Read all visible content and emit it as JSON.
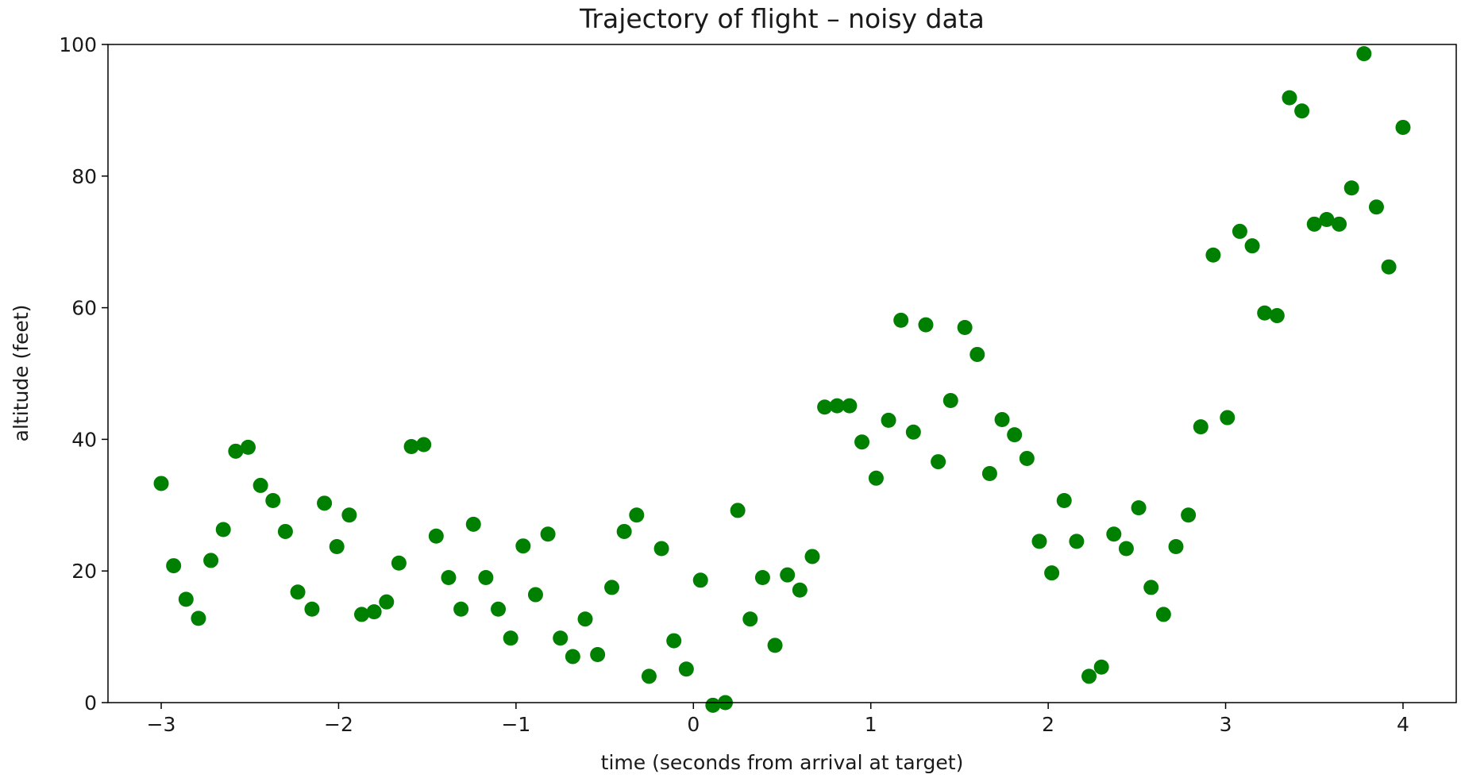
{
  "chart_data": {
    "type": "scatter",
    "title": "Trajectory of flight  –  noisy data",
    "xlabel": "time (seconds from arrival at target)",
    "ylabel": "altitude (feet)",
    "xlim": [
      -3.3,
      4.3
    ],
    "ylim": [
      0,
      100
    ],
    "x_ticks": [
      -3,
      -2,
      -1,
      0,
      1,
      2,
      3,
      4
    ],
    "x_tick_labels": [
      "−3",
      "−2",
      "−1",
      "0",
      "1",
      "2",
      "3",
      "4"
    ],
    "y_ticks": [
      0,
      20,
      40,
      60,
      80,
      100
    ],
    "y_tick_labels": [
      "0",
      "20",
      "40",
      "60",
      "80",
      "100"
    ],
    "grid": false,
    "marker_color": "#008000",
    "series": [
      {
        "x": [
          -3.0,
          -2.93,
          -2.86,
          -2.79,
          -2.72,
          -2.65,
          -2.58,
          -2.51,
          -2.44,
          -2.37,
          -2.3,
          -2.23,
          -2.15,
          -2.08,
          -2.01,
          -1.94,
          -1.87,
          -1.8,
          -1.73,
          -1.66,
          -1.59,
          -1.52,
          -1.45,
          -1.38,
          -1.31,
          -1.24,
          -1.17,
          -1.1,
          -1.03,
          -0.96,
          -0.89,
          -0.82,
          -0.75,
          -0.68,
          -0.61,
          -0.54,
          -0.46,
          -0.39,
          -0.32,
          -0.25,
          -0.18,
          -0.11,
          -0.04,
          0.04,
          0.11,
          0.18,
          0.25,
          0.32,
          0.39,
          0.46,
          0.53,
          0.6,
          0.67,
          0.74,
          0.81,
          0.88,
          0.95,
          1.03,
          1.1,
          1.17,
          1.24,
          1.31,
          1.38,
          1.45,
          1.53,
          1.6,
          1.67,
          1.74,
          1.81,
          1.88,
          1.95,
          2.02,
          2.09,
          2.16,
          2.23,
          2.3,
          2.37,
          2.44,
          2.51,
          2.58,
          2.65,
          2.72,
          2.79,
          2.86,
          2.93,
          3.01,
          3.08,
          3.15,
          3.22,
          3.29,
          3.36,
          3.43,
          3.5,
          3.57,
          3.64,
          3.71,
          3.78,
          3.85,
          3.92,
          4.0
        ],
        "y": [
          33.3,
          20.8,
          15.7,
          12.8,
          21.6,
          26.3,
          38.2,
          38.8,
          33.0,
          30.7,
          26.0,
          16.8,
          14.2,
          30.3,
          23.7,
          28.5,
          13.4,
          13.8,
          15.3,
          21.2,
          38.9,
          39.2,
          25.3,
          19.0,
          14.2,
          27.1,
          19.0,
          14.2,
          9.8,
          23.8,
          16.4,
          25.6,
          9.8,
          7.0,
          12.7,
          7.3,
          17.5,
          26.0,
          28.5,
          4.0,
          23.4,
          9.4,
          5.1,
          18.6,
          -0.4,
          0.0,
          29.2,
          12.7,
          19.0,
          8.7,
          19.4,
          17.1,
          22.2,
          44.9,
          45.1,
          45.1,
          39.6,
          34.1,
          42.9,
          58.1,
          41.1,
          57.4,
          36.6,
          45.9,
          57.0,
          52.9,
          34.8,
          43.0,
          40.7,
          37.1,
          24.5,
          19.7,
          30.7,
          24.5,
          4.0,
          5.4,
          25.6,
          23.4,
          29.6,
          17.5,
          13.4,
          23.7,
          28.5,
          41.9,
          68.0,
          43.3,
          71.6,
          69.4,
          59.2,
          58.8,
          91.9,
          89.9,
          72.7,
          73.4,
          72.7,
          78.2,
          98.6,
          75.3,
          66.2,
          87.4
        ]
      }
    ]
  }
}
